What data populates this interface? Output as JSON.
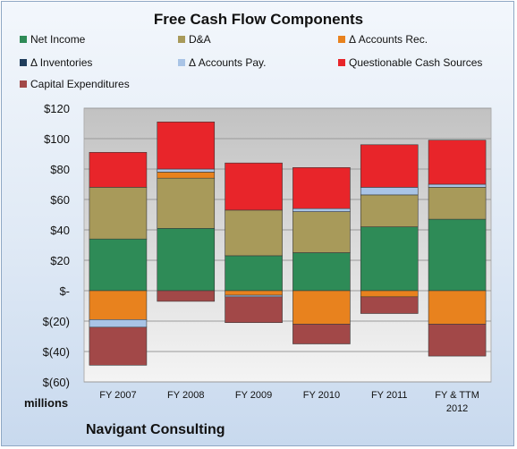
{
  "chart_data": {
    "type": "bar",
    "stacked": true,
    "title": "Free Cash Flow Components",
    "ylabel": "millions",
    "company": "Navigant Consulting",
    "categories": [
      "FY 2007",
      "FY 2008",
      "FY 2009",
      "FY 2010",
      "FY 2011",
      "FY & TTM 2012"
    ],
    "ylim": [
      -60,
      120
    ],
    "yticks": [
      -60,
      -40,
      -20,
      0,
      20,
      40,
      60,
      80,
      100,
      120
    ],
    "ytick_labels": [
      "$(60)",
      "$(40)",
      "$(20)",
      "$-",
      "$20",
      "$40",
      "$60",
      "$80",
      "$100",
      "$120"
    ],
    "grid": true,
    "legend": "top",
    "series": [
      {
        "name": "Net Income",
        "color": "#2e8b57",
        "values": [
          34,
          41,
          23,
          25,
          42,
          47
        ]
      },
      {
        "name": "D&A",
        "color": "#a89a5a",
        "values": [
          34,
          33,
          30,
          27,
          21,
          21
        ]
      },
      {
        "name": "Δ Accounts Rec.",
        "color": "#e8821e",
        "values": [
          -19,
          4,
          -3,
          -22,
          -4,
          -22
        ]
      },
      {
        "name": "Δ Inventories",
        "color": "#1f3d5c",
        "values": [
          0,
          0,
          0,
          0,
          0,
          0
        ]
      },
      {
        "name": "Δ Accounts Pay.",
        "color": "#a9c4e6",
        "values": [
          -5,
          2,
          -1,
          2,
          5,
          2
        ]
      },
      {
        "name": "Questionable Cash Sources",
        "color": "#e8252a",
        "values": [
          23,
          31,
          31,
          27,
          28,
          29
        ]
      },
      {
        "name": "Capital Expenditures",
        "color": "#a24848",
        "values": [
          -25,
          -7,
          -17,
          -13,
          -11,
          -21
        ]
      }
    ]
  }
}
